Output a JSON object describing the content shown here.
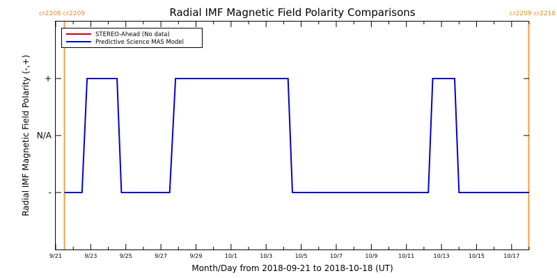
{
  "chart_data": {
    "type": "line",
    "title": "Radial IMF Magnetic Field Polarity Comparisons",
    "xlabel": "Month/Day from 2018-09-21 to 2018-10-18 (UT)",
    "ylabel": "Radial IMF Magnetic Field Polarity (-,+)",
    "x_range": [
      "2018-09-21",
      "2018-10-18"
    ],
    "x_ticks": [
      "9/21",
      "9/23",
      "9/25",
      "9/27",
      "9/29",
      "10/1",
      "10/3",
      "10/5",
      "10/7",
      "10/9",
      "10/11",
      "10/13",
      "10/15",
      "10/17"
    ],
    "y_ticks": [
      "-",
      "N/A",
      "+"
    ],
    "y_range": [
      -2,
      2
    ],
    "grid": false,
    "legend_position": "top-left",
    "carrington_left": "cr2208 cr2209",
    "carrington_right": "cr2209 cr2210",
    "carrington_lines": [
      {
        "label": "left",
        "date": "2018-09-21T12:00"
      },
      {
        "label": "right",
        "date": "2018-10-17T23:30"
      }
    ],
    "series": [
      {
        "name": "STEREO-Ahead (No data)",
        "color": "#cc0000",
        "points": []
      },
      {
        "name": "Predictive Science MAS Model",
        "color": "#0000cc",
        "points": [
          {
            "x": "2018-09-21T12:00",
            "y": -1
          },
          {
            "x": "2018-09-22T12:00",
            "y": -1
          },
          {
            "x": "2018-09-22T19:00",
            "y": 1
          },
          {
            "x": "2018-09-24T12:00",
            "y": 1
          },
          {
            "x": "2018-09-24T18:00",
            "y": -1
          },
          {
            "x": "2018-09-27T12:00",
            "y": -1
          },
          {
            "x": "2018-09-27T20:00",
            "y": 1
          },
          {
            "x": "2018-10-04T06:00",
            "y": 1
          },
          {
            "x": "2018-10-04T12:00",
            "y": -1
          },
          {
            "x": "2018-10-12T06:00",
            "y": -1
          },
          {
            "x": "2018-10-12T12:00",
            "y": 1
          },
          {
            "x": "2018-10-13T18:00",
            "y": 1
          },
          {
            "x": "2018-10-14T00:00",
            "y": -1
          },
          {
            "x": "2018-10-18T00:00",
            "y": -1
          }
        ]
      }
    ]
  }
}
